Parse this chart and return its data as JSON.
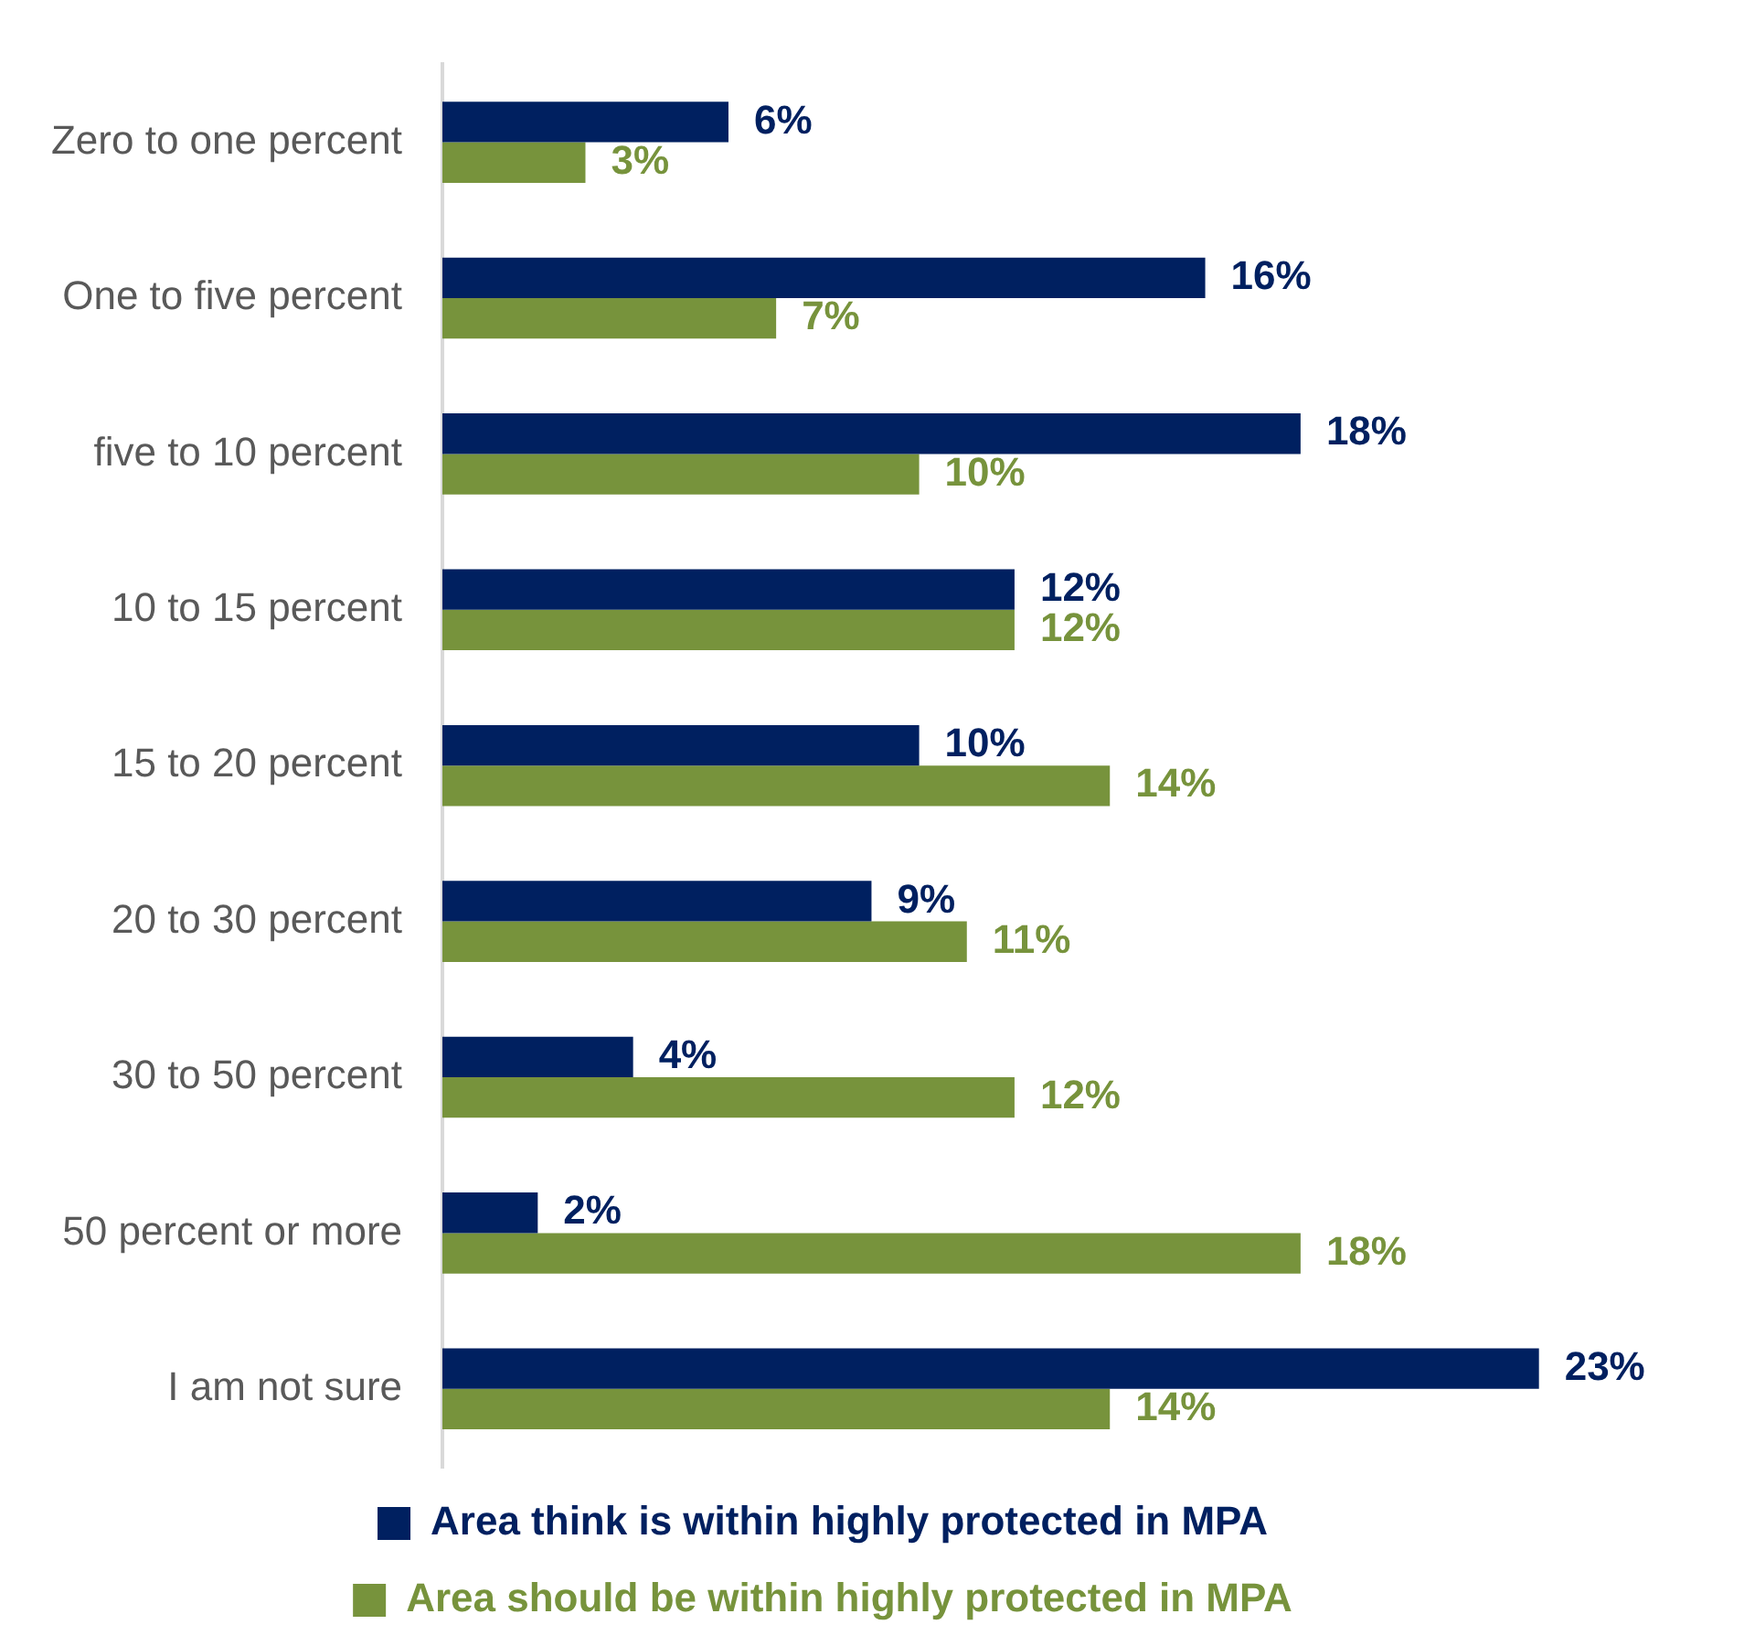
{
  "chart_data": {
    "type": "bar",
    "orientation": "horizontal",
    "categories": [
      "Zero to one percent",
      "One to five percent",
      "five to 10 percent",
      "10 to 15 percent",
      "15 to 20 percent",
      "20 to 30 percent",
      "30 to 50 percent",
      "50 percent or more",
      "I am not sure"
    ],
    "series": [
      {
        "name": "Area think is within highly protected in MPA",
        "color": "#002060",
        "values": [
          6,
          16,
          18,
          12,
          10,
          9,
          4,
          2,
          23
        ],
        "value_labels": [
          "6%",
          "16%",
          "18%",
          "12%",
          "10%",
          "9%",
          "4%",
          "2%",
          "23%"
        ]
      },
      {
        "name": "Area should be within highly protected in MPA",
        "color": "#77933c",
        "values": [
          3,
          7,
          10,
          12,
          14,
          11,
          12,
          18,
          14
        ],
        "value_labels": [
          "3%",
          "7%",
          "10%",
          "12%",
          "14%",
          "11%",
          "12%",
          "18%",
          "14%"
        ]
      }
    ],
    "legend": "bottom",
    "tick_labels": "y"
  }
}
